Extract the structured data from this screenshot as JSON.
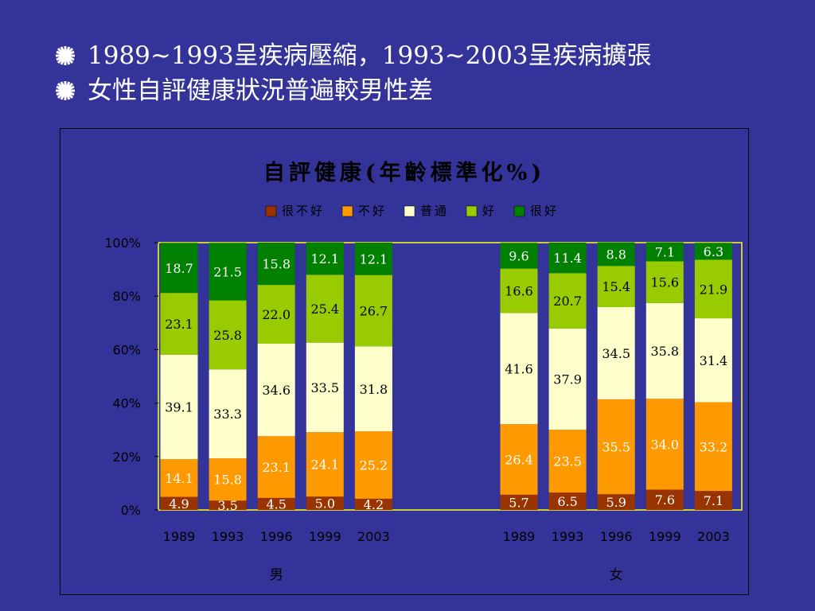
{
  "slide": {
    "bullets": [
      "1989~1993呈疾病壓縮，1993~2003呈疾病擴張",
      "女性自評健康狀況普遍較男性差"
    ]
  },
  "chart_data": {
    "type": "bar",
    "stacked": true,
    "title": "自評健康(年齡標準化%)",
    "legend_position": "top",
    "ylim": [
      0,
      100
    ],
    "y_ticks": [
      "0%",
      "20%",
      "40%",
      "60%",
      "80%",
      "100%"
    ],
    "grid": false,
    "colors": {
      "很不好": "#993300",
      "不好": "#ff9900",
      "普通": "#ffffcc",
      "好": "#99cc00",
      "很好": "#008000",
      "frame": "#cccc33"
    },
    "groups": [
      {
        "label": "男",
        "categories": [
          "1989",
          "1993",
          "1996",
          "1999",
          "2003"
        ]
      },
      {
        "label": "女",
        "categories": [
          "1989",
          "1993",
          "1996",
          "1999",
          "2003"
        ]
      }
    ],
    "series": [
      {
        "name": "很不好",
        "values": [
          [
            4.9,
            3.5,
            4.5,
            5.0,
            4.2
          ],
          [
            5.7,
            6.5,
            5.9,
            7.6,
            7.1
          ]
        ]
      },
      {
        "name": "不好",
        "values": [
          [
            14.1,
            15.8,
            23.1,
            24.1,
            25.2
          ],
          [
            26.4,
            23.5,
            35.5,
            34.0,
            33.2
          ]
        ]
      },
      {
        "name": "普通",
        "values": [
          [
            39.1,
            33.3,
            34.6,
            33.5,
            31.8
          ],
          [
            41.6,
            37.9,
            34.5,
            35.8,
            31.4
          ]
        ]
      },
      {
        "name": "好",
        "values": [
          [
            23.1,
            25.8,
            22.0,
            25.4,
            26.7
          ],
          [
            16.6,
            20.7,
            15.4,
            15.6,
            21.9
          ]
        ]
      },
      {
        "name": "很好",
        "values": [
          [
            18.7,
            21.5,
            15.8,
            12.1,
            12.1
          ],
          [
            9.6,
            11.4,
            8.8,
            7.1,
            6.3
          ]
        ]
      }
    ]
  }
}
